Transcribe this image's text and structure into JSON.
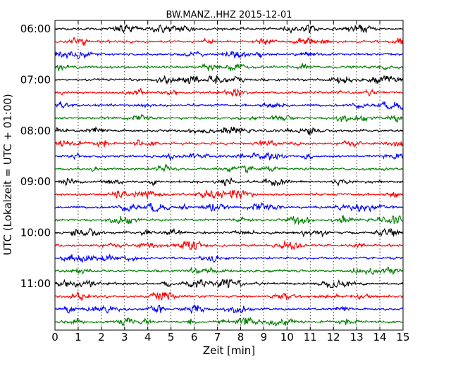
{
  "chart_data": {
    "type": "line",
    "title": "BW.MANZ..HHZ 2015-12-01",
    "xlabel": "Zeit  [min]",
    "ylabel": "UTC (Lokalzeit = UTC + 01:00)",
    "xlim": [
      0,
      15
    ],
    "x_ticks": [
      "0",
      "1",
      "2",
      "3",
      "4",
      "5",
      "6",
      "7",
      "8",
      "9",
      "10",
      "11",
      "12",
      "13",
      "14",
      "15"
    ],
    "y_ticks": [
      "06:00",
      "07:00",
      "08:00",
      "09:00",
      "10:00",
      "11:00"
    ],
    "grid": true,
    "trace_colors": [
      "#000000",
      "#ff0000",
      "#0000ff",
      "#008000"
    ],
    "traces": [
      {
        "start": "06:00",
        "color": "#000000"
      },
      {
        "start": "06:15",
        "color": "#ff0000"
      },
      {
        "start": "06:30",
        "color": "#0000ff"
      },
      {
        "start": "06:45",
        "color": "#008000"
      },
      {
        "start": "07:00",
        "color": "#000000"
      },
      {
        "start": "07:15",
        "color": "#ff0000"
      },
      {
        "start": "07:30",
        "color": "#0000ff"
      },
      {
        "start": "07:45",
        "color": "#008000"
      },
      {
        "start": "08:00",
        "color": "#000000"
      },
      {
        "start": "08:15",
        "color": "#ff0000"
      },
      {
        "start": "08:30",
        "color": "#0000ff"
      },
      {
        "start": "08:45",
        "color": "#008000"
      },
      {
        "start": "09:00",
        "color": "#000000"
      },
      {
        "start": "09:15",
        "color": "#ff0000"
      },
      {
        "start": "09:30",
        "color": "#0000ff"
      },
      {
        "start": "09:45",
        "color": "#008000"
      },
      {
        "start": "10:00",
        "color": "#000000"
      },
      {
        "start": "10:15",
        "color": "#ff0000"
      },
      {
        "start": "10:30",
        "color": "#0000ff"
      },
      {
        "start": "10:45",
        "color": "#008000"
      },
      {
        "start": "11:00",
        "color": "#000000"
      },
      {
        "start": "11:15",
        "color": "#ff0000"
      },
      {
        "start": "11:30",
        "color": "#0000ff"
      },
      {
        "start": "11:45",
        "color": "#008000"
      }
    ]
  }
}
